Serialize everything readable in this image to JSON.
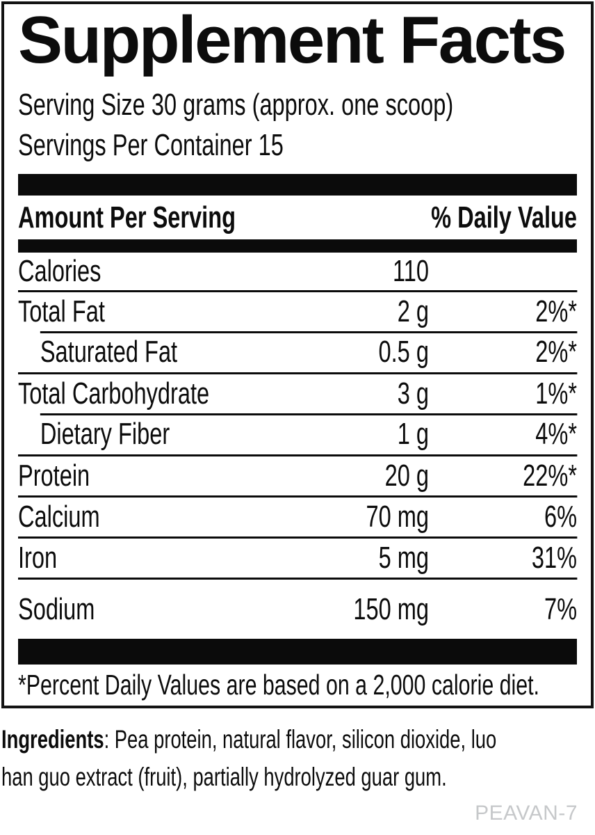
{
  "label": {
    "title": "Supplement Facts",
    "serving_size": "Serving Size 30 grams (approx. one scoop)",
    "servings_per_container": "Servings Per Container 15",
    "header": {
      "amount": "Amount Per Serving",
      "daily_value": "% Daily Value"
    },
    "rows": [
      {
        "name": "Calories",
        "amount": "110",
        "dv": "",
        "indent": false
      },
      {
        "name": "Total Fat",
        "amount": "2 g",
        "dv": "2%*",
        "indent": false
      },
      {
        "name": "Saturated Fat",
        "amount": "0.5 g",
        "dv": "2%*",
        "indent": true
      },
      {
        "name": "Total Carbohydrate",
        "amount": "3 g",
        "dv": "1%*",
        "indent": false
      },
      {
        "name": "Dietary Fiber",
        "amount": "1 g",
        "dv": "4%*",
        "indent": true
      },
      {
        "name": "Protein",
        "amount": "20 g",
        "dv": "22%*",
        "indent": false
      },
      {
        "name": "Calcium",
        "amount": "70 mg",
        "dv": "6%",
        "indent": false
      },
      {
        "name": "Iron",
        "amount": "5 mg",
        "dv": "31%",
        "indent": false
      },
      {
        "name": "Sodium",
        "amount": "150 mg",
        "dv": "7%",
        "indent": false
      }
    ],
    "footnote": "*Percent Daily Values are based on a 2,000 calorie diet."
  },
  "ingredients": {
    "label": "Ingredients",
    "line1_rest": ": Pea protein, natural flavor, silicon dioxide, luo",
    "line2": "han guo extract (fruit), partially hydrolyzed guar gum.",
    "full_text": "Ingredients: Pea protein, natural flavor, silicon dioxide, luo han guo extract (fruit), partially hydrolyzed guar gum."
  },
  "product_code": "PEAVAN-7",
  "colors": {
    "text": "#0c0c0c",
    "bars": "#0b0b0b",
    "border": "#131313",
    "muted_code": "#c6c8ca",
    "background": "#ffffff"
  }
}
